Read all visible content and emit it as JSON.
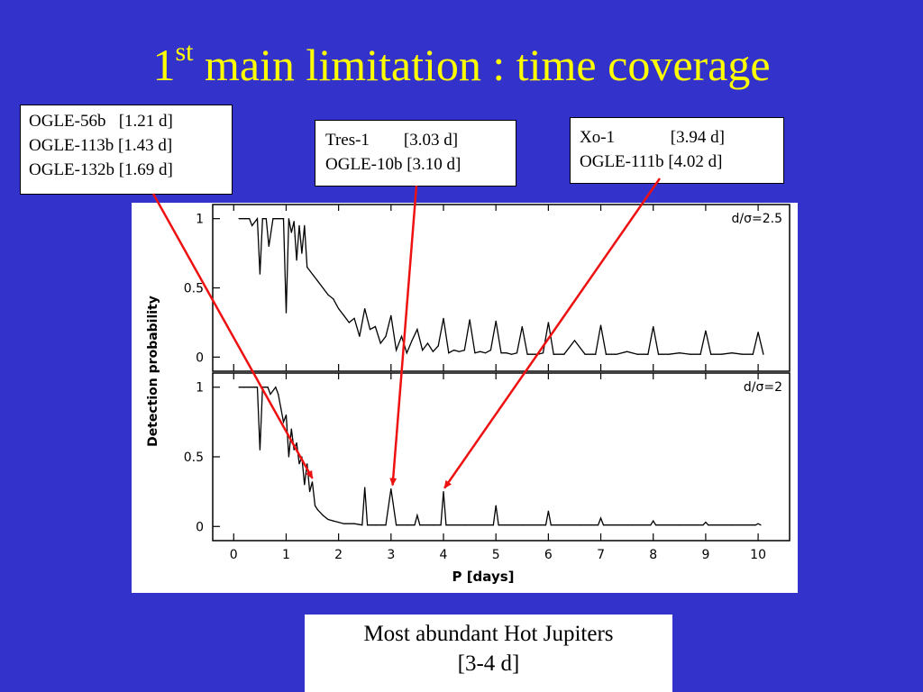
{
  "slide": {
    "title_prefix": "1",
    "title_sup": "st",
    "title_rest": " main limitation : time coverage",
    "title_color": "#ffff00",
    "background": "#3333cc"
  },
  "annotations": [
    {
      "lines": [
        "OGLE-56b   [1.21 d]",
        "OGLE-113b [1.43 d]",
        "OGLE-132b [1.69 d]"
      ],
      "arrow_target": {
        "panel": 1,
        "x": 1.5,
        "y": 0.32
      }
    },
    {
      "lines": [
        "Tres-1        [3.03 d]",
        "OGLE-10b [3.10 d]"
      ],
      "arrow_target": {
        "panel": 1,
        "x": 3.03,
        "y": 0.27
      }
    },
    {
      "lines": [
        "Xo-1             [3.94 d]",
        "OGLE-111b [4.02 d]"
      ],
      "arrow_target": {
        "panel": 1,
        "x": 4.02,
        "y": 0.25
      }
    }
  ],
  "caption": {
    "line1": "Most abundant Hot Jupiters",
    "line2": "[3-4 d]"
  },
  "arrow_color": "#ee1111",
  "chart_data": [
    {
      "type": "line",
      "panel_label": "d/σ=2.5",
      "xlabel": "P [days]",
      "ylabel": "Detection probability",
      "xlim": [
        -0.4,
        10.6
      ],
      "ylim": [
        -0.05,
        1.05
      ],
      "yticks": [
        "0",
        "0.5",
        "1"
      ],
      "xticks": [
        "0",
        "1",
        "2",
        "3",
        "4",
        "5",
        "6",
        "7",
        "8",
        "9",
        "10"
      ],
      "x": [
        0.1,
        0.2,
        0.3,
        0.35,
        0.45,
        0.5,
        0.55,
        0.62,
        0.67,
        0.75,
        0.8,
        0.85,
        0.9,
        0.95,
        1.0,
        1.05,
        1.1,
        1.15,
        1.2,
        1.25,
        1.3,
        1.35,
        1.4,
        1.5,
        1.6,
        1.7,
        1.8,
        1.9,
        2.0,
        2.1,
        2.2,
        2.3,
        2.4,
        2.5,
        2.6,
        2.7,
        2.8,
        2.9,
        3.0,
        3.1,
        3.2,
        3.3,
        3.4,
        3.5,
        3.6,
        3.7,
        3.8,
        3.9,
        4.0,
        4.1,
        4.2,
        4.3,
        4.4,
        4.5,
        4.6,
        4.7,
        4.8,
        4.9,
        5.0,
        5.1,
        5.2,
        5.3,
        5.4,
        5.5,
        5.6,
        5.7,
        5.8,
        5.9,
        6.0,
        6.1,
        6.3,
        6.5,
        6.7,
        6.9,
        7.0,
        7.1,
        7.3,
        7.5,
        7.7,
        7.9,
        8.0,
        8.1,
        8.3,
        8.5,
        8.7,
        8.9,
        9.0,
        9.1,
        9.3,
        9.5,
        9.7,
        9.9,
        10.0,
        10.1
      ],
      "y": [
        1.0,
        1.0,
        1.0,
        0.95,
        1.0,
        0.6,
        1.0,
        1.0,
        0.8,
        1.0,
        1.0,
        1.0,
        1.0,
        1.0,
        0.32,
        1.0,
        0.9,
        0.98,
        0.7,
        0.95,
        0.75,
        0.95,
        0.65,
        0.6,
        0.55,
        0.5,
        0.45,
        0.42,
        0.35,
        0.3,
        0.25,
        0.28,
        0.15,
        0.35,
        0.2,
        0.22,
        0.1,
        0.15,
        0.3,
        0.05,
        0.15,
        0.03,
        0.12,
        0.2,
        0.05,
        0.1,
        0.04,
        0.08,
        0.28,
        0.03,
        0.05,
        0.04,
        0.05,
        0.27,
        0.03,
        0.04,
        0.03,
        0.05,
        0.26,
        0.03,
        0.03,
        0.02,
        0.03,
        0.22,
        0.02,
        0.02,
        0.02,
        0.03,
        0.25,
        0.02,
        0.02,
        0.12,
        0.02,
        0.02,
        0.23,
        0.02,
        0.02,
        0.04,
        0.02,
        0.02,
        0.22,
        0.02,
        0.02,
        0.03,
        0.02,
        0.02,
        0.19,
        0.02,
        0.02,
        0.03,
        0.02,
        0.02,
        0.18,
        0.02
      ]
    },
    {
      "type": "line",
      "panel_label": "d/σ=2",
      "xlabel": "P [days]",
      "ylabel": "Detection probability",
      "xlim": [
        -0.4,
        10.6
      ],
      "ylim": [
        -0.05,
        1.05
      ],
      "yticks": [
        "0",
        "0.5",
        "1"
      ],
      "xticks": [
        "0",
        "1",
        "2",
        "3",
        "4",
        "5",
        "6",
        "7",
        "8",
        "9",
        "10"
      ],
      "x": [
        0.1,
        0.2,
        0.3,
        0.4,
        0.45,
        0.5,
        0.55,
        0.65,
        0.7,
        0.8,
        0.85,
        0.9,
        0.95,
        1.0,
        1.05,
        1.1,
        1.15,
        1.2,
        1.25,
        1.3,
        1.35,
        1.4,
        1.45,
        1.5,
        1.55,
        1.6,
        1.7,
        1.8,
        1.9,
        2.0,
        2.1,
        2.3,
        2.45,
        2.5,
        2.55,
        2.7,
        2.9,
        3.0,
        3.1,
        3.3,
        3.45,
        3.5,
        3.55,
        3.8,
        3.95,
        4.0,
        4.05,
        4.4,
        4.95,
        5.0,
        5.05,
        5.5,
        5.95,
        6.0,
        6.05,
        6.6,
        6.95,
        7.0,
        7.05,
        7.6,
        7.95,
        8.0,
        8.05,
        8.5,
        8.95,
        9.0,
        9.05,
        9.5,
        9.95,
        10.0,
        10.05
      ],
      "y": [
        1.0,
        1.0,
        1.0,
        1.0,
        1.0,
        0.55,
        1.0,
        1.0,
        0.95,
        1.0,
        0.95,
        0.85,
        0.75,
        0.8,
        0.5,
        0.7,
        0.55,
        0.6,
        0.45,
        0.5,
        0.3,
        0.45,
        0.25,
        0.32,
        0.15,
        0.12,
        0.08,
        0.05,
        0.04,
        0.03,
        0.02,
        0.02,
        0.01,
        0.28,
        0.01,
        0.01,
        0.01,
        0.27,
        0.01,
        0.01,
        0.01,
        0.08,
        0.01,
        0.01,
        0.01,
        0.25,
        0.01,
        0.01,
        0.01,
        0.15,
        0.01,
        0.01,
        0.01,
        0.11,
        0.01,
        0.01,
        0.01,
        0.06,
        0.01,
        0.01,
        0.01,
        0.04,
        0.01,
        0.01,
        0.01,
        0.03,
        0.01,
        0.01,
        0.01,
        0.02,
        0.01
      ]
    }
  ]
}
